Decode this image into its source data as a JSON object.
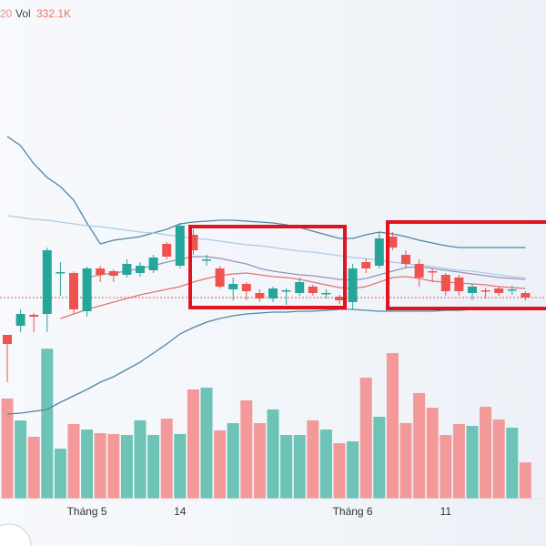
{
  "chart_data": {
    "type": "candlestick",
    "header_fragment": "20",
    "categories": [
      null,
      null,
      null,
      null,
      null,
      null,
      "Tháng 5",
      null,
      null,
      null,
      null,
      null,
      null,
      "14",
      null,
      null,
      null,
      null,
      null,
      null,
      null,
      null,
      null,
      null,
      null,
      null,
      "Tháng 6",
      null,
      null,
      null,
      null,
      null,
      null,
      "11",
      null,
      null,
      null,
      null,
      null,
      null
    ],
    "open": [
      232,
      242,
      254,
      255,
      300,
      300,
      258,
      305,
      302,
      298,
      300,
      303,
      332,
      308,
      342,
      314,
      305,
      282,
      288,
      278,
      272,
      280,
      278,
      285,
      277,
      274,
      268,
      312,
      308,
      340,
      320,
      310,
      302,
      298,
      295,
      278,
      281,
      283,
      282,
      278
    ],
    "close": [
      222,
      255,
      252,
      325,
      301,
      260,
      305,
      298,
      297,
      310,
      308,
      317,
      318,
      352,
      325,
      315,
      285,
      288,
      280,
      272,
      283,
      281,
      290,
      278,
      278,
      270,
      305,
      305,
      338,
      328,
      310,
      295,
      301,
      280,
      280,
      285,
      280,
      278,
      282,
      273
    ],
    "high": [
      232,
      260,
      256,
      328,
      312,
      302,
      307,
      308,
      304,
      315,
      312,
      320,
      334,
      355,
      348,
      320,
      308,
      295,
      290,
      282,
      285,
      283,
      295,
      287,
      282,
      276,
      310,
      316,
      345,
      345,
      325,
      315,
      305,
      300,
      298,
      288,
      284,
      285,
      286,
      280
    ],
    "low": [
      180,
      235,
      235,
      235,
      275,
      255,
      252,
      290,
      290,
      295,
      296,
      300,
      315,
      305,
      320,
      308,
      283,
      270,
      270,
      268,
      268,
      265,
      275,
      275,
      272,
      266,
      260,
      300,
      305,
      325,
      305,
      285,
      290,
      275,
      275,
      270,
      272,
      275,
      276,
      270
    ],
    "up_color": "#26a69a",
    "down_color": "#ef5350",
    "ylim": [
      0,
      600
    ],
    "lines": [
      {
        "color": "#4f86a6",
        "values": [
          450,
          440,
          420,
          405,
          395,
          380,
          355,
          332,
          336,
          338,
          340,
          344,
          348,
          354,
          356,
          357,
          358,
          358,
          357,
          356,
          355,
          353,
          350,
          346,
          342,
          338,
          338,
          342,
          345,
          343,
          340,
          336,
          333,
          330,
          328,
          328,
          328,
          328,
          328,
          328
        ]
      },
      {
        "color": "#4f86a6",
        "values": [
          145,
          146,
          148,
          150,
          158,
          165,
          172,
          180,
          186,
          194,
          202,
          212,
          222,
          233,
          240,
          246,
          250,
          253,
          255,
          256,
          257,
          257,
          258,
          258,
          259,
          260,
          260,
          259,
          258,
          258,
          258,
          258,
          258,
          259,
          259,
          260,
          260,
          261,
          261,
          262
        ]
      },
      {
        "color": "#a8cde6",
        "values": [
          363,
          361,
          359,
          358,
          356,
          354,
          352,
          351,
          349,
          347,
          345,
          344,
          342,
          340,
          338,
          337,
          335,
          333,
          331,
          330,
          328,
          326,
          324,
          323,
          321,
          319,
          317,
          316,
          314,
          312,
          310,
          309,
          307,
          305,
          303,
          302,
          300,
          298,
          296,
          295
        ]
      },
      {
        "color": "#9b8fbf",
        "values": [
          null,
          null,
          null,
          null,
          null,
          null,
          295,
          298,
          300,
          302,
          305,
          308,
          312,
          315,
          318,
          318,
          316,
          313,
          310,
          305,
          302,
          300,
          298,
          297,
          295,
          293,
          292,
          294,
          298,
          302,
          306,
          307,
          305,
          303,
          301,
          299,
          297,
          295,
          294,
          293
        ]
      },
      {
        "color": "#e57373",
        "values": [
          null,
          null,
          null,
          null,
          250,
          255,
          260,
          264,
          268,
          272,
          276,
          279,
          282,
          285,
          290,
          294,
          297,
          299,
          300,
          298,
          296,
          295,
          293,
          290,
          287,
          284,
          283,
          285,
          290,
          295,
          296,
          294,
          291,
          290,
          289,
          288,
          287,
          285,
          284,
          283
        ]
      }
    ],
    "volume": {
      "name": "Vol",
      "last_label": "332.1K",
      "values": [
        917,
        716,
        567,
        1374,
        458,
        683,
        633,
        600,
        592,
        583,
        717,
        583,
        733,
        592,
        1000,
        1017,
        625,
        692,
        900,
        692,
        817,
        583,
        583,
        717,
        633,
        508,
        525,
        1108,
        750,
        1333,
        692,
        967,
        833,
        583,
        683,
        667,
        842,
        725,
        650,
        332.1
      ],
      "ylim": [
        0,
        1500
      ],
      "up_color": "#6cc3b6",
      "down_color": "#f4999a"
    }
  }
}
